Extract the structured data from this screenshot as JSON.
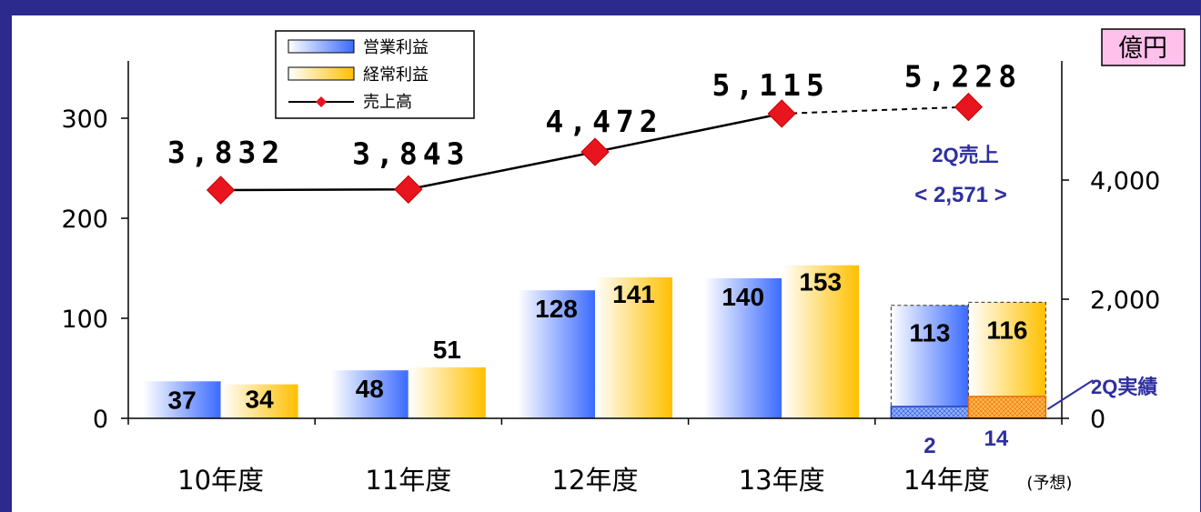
{
  "chart_data": {
    "type": "bar",
    "categories": [
      "10年度",
      "11年度",
      "12年度",
      "13年度",
      "14年度"
    ],
    "category_note": "(予想)",
    "unit": "億円",
    "series": [
      {
        "name": "営業利益",
        "values": [
          37,
          48,
          128,
          140,
          113
        ],
        "color": "#3b6bff",
        "axis": "left"
      },
      {
        "name": "経常利益",
        "values": [
          34,
          51,
          141,
          153,
          116
        ],
        "color": "#ffc000",
        "axis": "left"
      },
      {
        "name": "売上高",
        "type": "line",
        "values": [
          3832,
          3843,
          4472,
          5115,
          5228
        ],
        "color": "#e8141e",
        "axis": "right"
      }
    ],
    "value_labels": {
      "op": [
        "37",
        "48",
        "128",
        "140",
        "113"
      ],
      "ord": [
        "34",
        "51",
        "141",
        "153",
        "116"
      ],
      "sales": [
        "3,832",
        "3,843",
        "4,472",
        "5,115",
        "5,228"
      ]
    },
    "left_axis": {
      "ticks": [
        "0",
        "100",
        "200",
        "300"
      ],
      "ylim": [
        0,
        350
      ]
    },
    "right_axis": {
      "ticks": [
        "0",
        "2,000",
        "4,000"
      ],
      "ylim": [
        0,
        6000
      ]
    },
    "forecast_index": 4,
    "half_year_results": {
      "label": "2Q実績",
      "op_value": 2,
      "op_label": "2",
      "ord_value": 14,
      "ord_label": "14"
    },
    "half_year_sales": {
      "title": "2Q売上",
      "value": "< 2,571 >"
    },
    "legend": [
      "営業利益",
      "経常利益",
      "売上高"
    ],
    "legend_position": "top-center",
    "grid": false
  }
}
